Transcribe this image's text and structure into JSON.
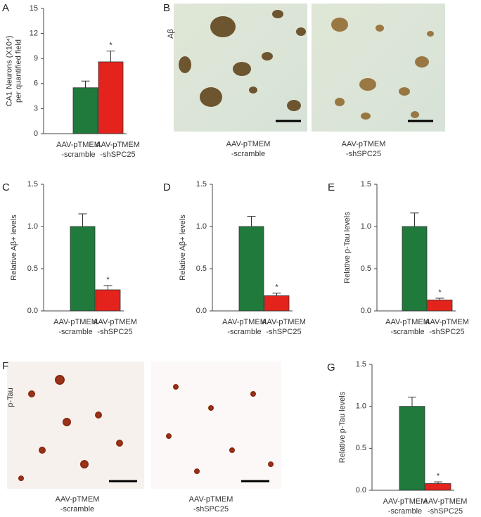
{
  "chart_data": [
    {
      "type": "bar",
      "panel": "A",
      "ylabel": [
        "CA1 Neurons (X10⁴)",
        "per quantified field"
      ],
      "categories": [
        [
          "AAV-pTMEM",
          "-scramble"
        ],
        [
          "AAV-pTMEM",
          "-shSPC25"
        ]
      ],
      "values": [
        5.5,
        8.6
      ],
      "errors": [
        0.8,
        1.3
      ],
      "colors": [
        "#1f7a3c",
        "#e3231c"
      ],
      "ylim": [
        0,
        15
      ],
      "yticks": [
        0,
        3,
        6,
        9,
        12,
        15
      ],
      "annotation": "*"
    },
    {
      "type": "bar",
      "panel": "C",
      "ylabel": [
        "Relative Aβ+ levels"
      ],
      "categories": [
        [
          "AAV-pTMEM",
          "-scramble"
        ],
        [
          "AAV-pTMEM",
          "-shSPC25"
        ]
      ],
      "values": [
        1.0,
        0.25
      ],
      "errors": [
        0.15,
        0.05
      ],
      "colors": [
        "#1f7a3c",
        "#e3231c"
      ],
      "ylim": [
        0,
        1.5
      ],
      "yticks": [
        {
          "value": 0,
          "label": "0.0"
        },
        0.5,
        {
          "value": 1,
          "label": "1.0"
        },
        1.5
      ],
      "annotation": "*"
    },
    {
      "type": "bar",
      "panel": "D",
      "ylabel": [
        "Relative Aβ+ levels"
      ],
      "categories": [
        [
          "AAV-pTMEM",
          "-scramble"
        ],
        [
          "AAV-pTMEM",
          "-shSPC25"
        ]
      ],
      "values": [
        1.0,
        0.18
      ],
      "errors": [
        0.12,
        0.03
      ],
      "colors": [
        "#1f7a3c",
        "#e3231c"
      ],
      "ylim": [
        0,
        1.5
      ],
      "yticks": [
        {
          "value": 0,
          "label": "0.0"
        },
        0.5,
        {
          "value": 1,
          "label": "1.0"
        },
        1.5
      ],
      "annotation": "*"
    },
    {
      "type": "bar",
      "panel": "E",
      "ylabel": [
        "Relative p-Tau levels"
      ],
      "categories": [
        [
          "AAV-pTMEM",
          "-scramble"
        ],
        [
          "AAV-pTMEM",
          "-shSPC25"
        ]
      ],
      "values": [
        1.0,
        0.13
      ],
      "errors": [
        0.16,
        0.02
      ],
      "colors": [
        "#1f7a3c",
        "#e3231c"
      ],
      "ylim": [
        0,
        1.5
      ],
      "yticks": [
        {
          "value": 0,
          "label": "0.0"
        },
        0.5,
        {
          "value": 1,
          "label": "1.0"
        },
        1.5
      ],
      "annotation": "*"
    },
    {
      "type": "bar",
      "panel": "G",
      "ylabel": [
        "Relative p-Tau levels"
      ],
      "categories": [
        [
          "AAV-pTMEM",
          "-scramble"
        ],
        [
          "AAV-pTMEM",
          "-shSPC25"
        ]
      ],
      "values": [
        1.0,
        0.08
      ],
      "errors": [
        0.11,
        0.02
      ],
      "colors": [
        "#1f7a3c",
        "#e3231c"
      ],
      "ylim": [
        0,
        1.5
      ],
      "yticks": [
        {
          "value": 0,
          "label": "0.0"
        },
        0.5,
        {
          "value": 1,
          "label": "1.0"
        },
        1.5
      ],
      "annotation": "*"
    }
  ],
  "images": [
    {
      "panel": "B",
      "stain": "Aβ",
      "stain_color": "#e0a21c",
      "captions": [
        [
          "AAV-pTMEM",
          "-scramble"
        ],
        [
          "AAV-pTMEM",
          "-shSPC25"
        ]
      ],
      "caption_colors": [
        "#1f7a3c",
        "#e3231c"
      ]
    },
    {
      "panel": "F",
      "stain": "p-Tau",
      "stain_color": "#a0522d",
      "captions": [
        [
          "AAV-pTMEM",
          "-scramble"
        ],
        [
          "AAV-pTMEM",
          "-shSPC25"
        ]
      ],
      "caption_colors": [
        "#1f7a3c",
        "#e3231c"
      ]
    }
  ]
}
